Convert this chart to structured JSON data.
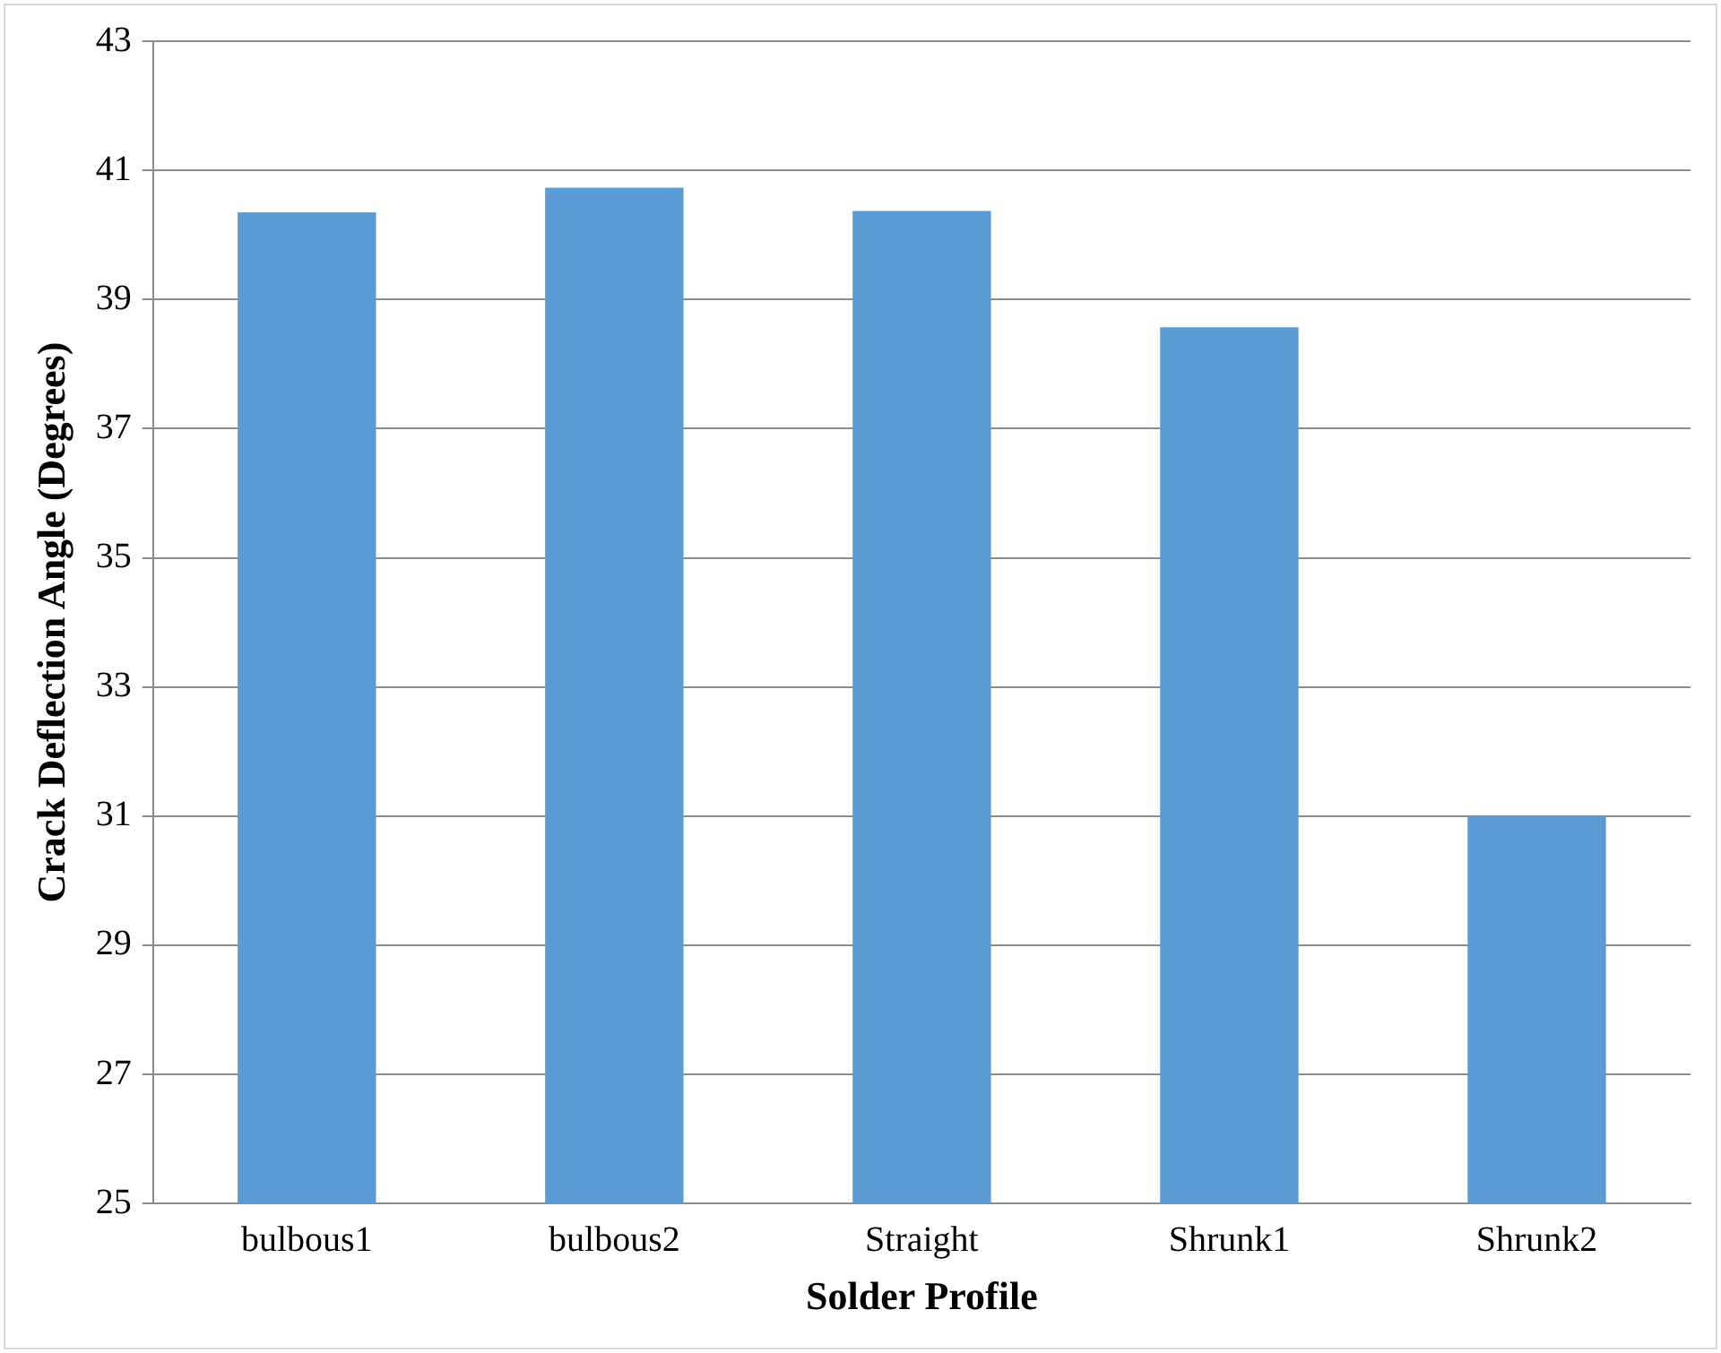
{
  "chart_data": {
    "type": "bar",
    "xlabel": "Solder Profile",
    "ylabel": "Crack Deflection Angle (Degrees)",
    "categories": [
      "bulbous1",
      "bulbous2",
      "Straight",
      "Shrunk1",
      "Shrunk2"
    ],
    "values": [
      40.35,
      40.73,
      40.37,
      38.57,
      31.0
    ],
    "color": "#5b9bd5",
    "ylim": [
      25,
      43
    ],
    "yticks": [
      25,
      27,
      29,
      31,
      33,
      35,
      37,
      39,
      41,
      43
    ],
    "grid": "y",
    "legend": false
  }
}
